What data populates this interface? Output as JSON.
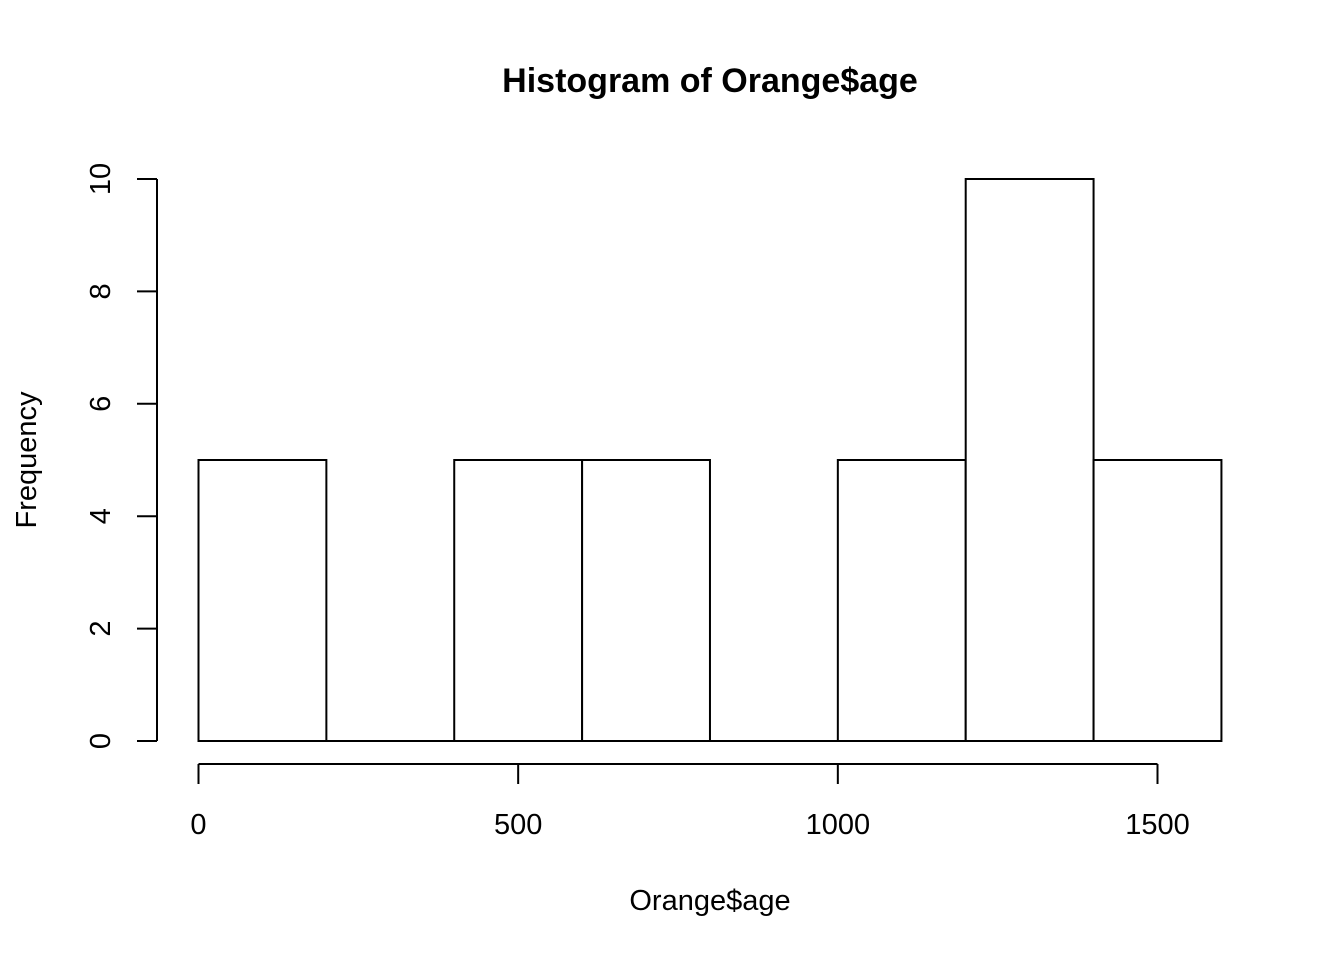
{
  "chart_data": {
    "type": "bar",
    "title": "Histogram of Orange$age",
    "xlabel": "Orange$age",
    "ylabel": "Frequency",
    "bins": [
      {
        "start": 0,
        "end": 200,
        "count": 5
      },
      {
        "start": 200,
        "end": 400,
        "count": 0
      },
      {
        "start": 400,
        "end": 600,
        "count": 5
      },
      {
        "start": 600,
        "end": 800,
        "count": 5
      },
      {
        "start": 800,
        "end": 1000,
        "count": 0
      },
      {
        "start": 1000,
        "end": 1200,
        "count": 5
      },
      {
        "start": 1200,
        "end": 1400,
        "count": 10
      },
      {
        "start": 1400,
        "end": 1600,
        "count": 5
      }
    ],
    "xticks": [
      0,
      500,
      1000,
      1500
    ],
    "yticks": [
      0,
      2,
      4,
      6,
      8,
      10
    ],
    "xlim": [
      0,
      1600
    ],
    "ylim": [
      0,
      10
    ],
    "grid": false,
    "bar_fill": "#ffffff",
    "bar_stroke": "#000000"
  }
}
